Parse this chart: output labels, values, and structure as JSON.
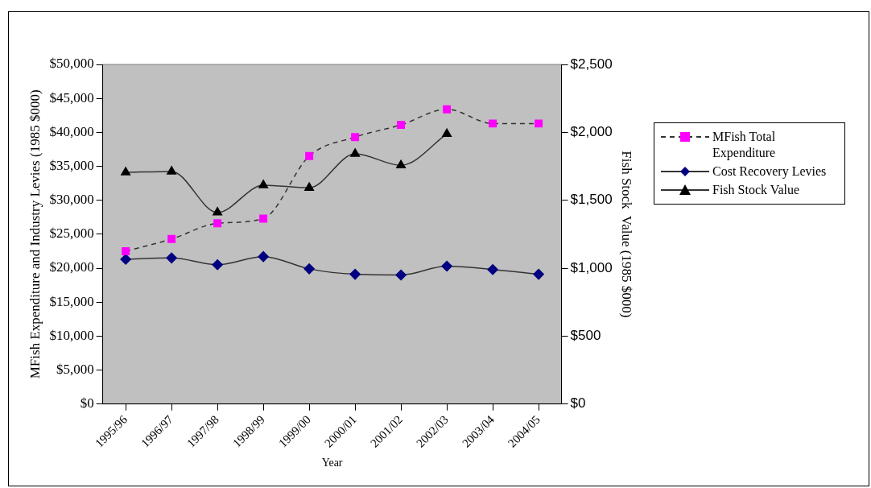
{
  "chart_data": {
    "type": "line",
    "xlabel": "Year",
    "ylabel": "MFish Expenditure and Industry Levies (1985 $000)",
    "y2label": "Fish Stock  Value (1985 $000)",
    "categories": [
      "1995/96",
      "1996/97",
      "1997/98",
      "1998/99",
      "1999/00",
      "2000/01",
      "2001/02",
      "2002/03",
      "2003/04",
      "2004/05"
    ],
    "series": [
      {
        "name": "MFish Total Expenditure",
        "color": "#ff00ff",
        "marker": "square",
        "line_style": "dashed",
        "values": [
          22500,
          24300,
          26600,
          27300,
          36500,
          39300,
          41100,
          43400,
          41300,
          41300
        ]
      },
      {
        "name": "Cost Recovery Levies",
        "color": "#000080",
        "marker": "diamond",
        "line_style": "solid",
        "values": [
          21300,
          21500,
          20500,
          21700,
          19900,
          19100,
          19000,
          20300,
          19800,
          19100
        ]
      },
      {
        "name": "Fish Stock Value",
        "color": "#000000",
        "marker": "triangle",
        "line_style": "solid",
        "axis": "y2",
        "values": [
          1705,
          1712,
          1410,
          1611,
          1592,
          1842,
          1757,
          1988,
          null,
          null
        ]
      }
    ],
    "ylim": [
      0,
      50000
    ],
    "yticks": [
      {
        "value": 0,
        "label": "$0"
      },
      {
        "value": 5000,
        "label": "$5,000"
      },
      {
        "value": 10000,
        "label": "$10,000"
      },
      {
        "value": 15000,
        "label": "$15,000"
      },
      {
        "value": 20000,
        "label": "$20,000"
      },
      {
        "value": 25000,
        "label": "$25,000"
      },
      {
        "value": 30000,
        "label": "$30,000"
      },
      {
        "value": 35000,
        "label": "$35,000"
      },
      {
        "value": 40000,
        "label": "$40,000"
      },
      {
        "value": 45000,
        "label": "$45,000"
      },
      {
        "value": 50000,
        "label": "$50,000"
      }
    ],
    "y2lim": [
      0,
      2500
    ],
    "y2ticks": [
      {
        "value": 0,
        "label": "$0"
      },
      {
        "value": 500,
        "label": "$500"
      },
      {
        "value": 1000,
        "label": "$1,000"
      },
      {
        "value": 1500,
        "label": "$1,500"
      },
      {
        "value": 2000,
        "label": "$2,000"
      },
      {
        "value": 2500,
        "label": "$2,500"
      }
    ],
    "grid": false,
    "legend": "right"
  }
}
